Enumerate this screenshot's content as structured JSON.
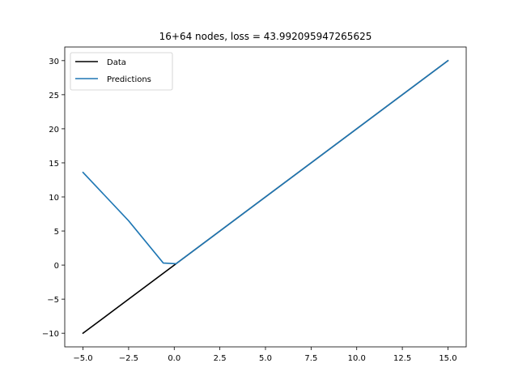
{
  "chart_data": {
    "type": "line",
    "title": "16+64 nodes, loss = 43.992095947265625",
    "xlabel": "",
    "ylabel": "",
    "xlim": [
      -6.0,
      16.0
    ],
    "ylim": [
      -12.0,
      32.0
    ],
    "grid": false,
    "legend_position": "upper-left",
    "xticks": [
      -5.0,
      -2.5,
      0.0,
      2.5,
      5.0,
      7.5,
      10.0,
      12.5,
      15.0
    ],
    "xtick_labels": [
      "−5.0",
      "−2.5",
      "0.0",
      "2.5",
      "5.0",
      "7.5",
      "10.0",
      "12.5",
      "15.0"
    ],
    "yticks": [
      -10,
      -5,
      0,
      5,
      10,
      15,
      20,
      25,
      30
    ],
    "ytick_labels": [
      "−10",
      "−5",
      "0",
      "5",
      "10",
      "15",
      "20",
      "25",
      "30"
    ],
    "series": [
      {
        "name": "Data",
        "color": "#000000",
        "x": [
          -5.0,
          15.0
        ],
        "y": [
          -10.0,
          30.0
        ]
      },
      {
        "name": "Predictions",
        "color": "#1f77b4",
        "x": [
          -5.0,
          -2.5,
          -0.6,
          0.1,
          15.0
        ],
        "y": [
          13.6,
          6.5,
          0.3,
          0.2,
          30.0
        ]
      }
    ]
  }
}
